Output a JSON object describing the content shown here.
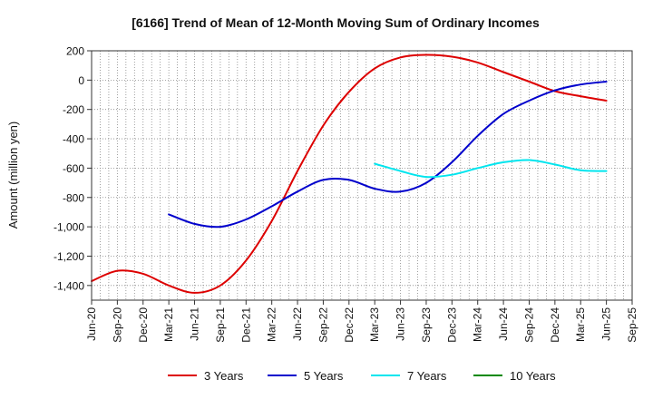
{
  "chart_data": {
    "type": "line",
    "title": "[6166]  Trend of Mean of 12-Month Moving Sum of Ordinary Incomes",
    "xlabel": "",
    "ylabel": "Amount (million yen)",
    "ylim": [
      -1500,
      200
    ],
    "yticks": [
      200,
      0,
      -200,
      -400,
      -600,
      -800,
      -1000,
      -1200,
      -1400
    ],
    "ytick_labels": [
      "200",
      "0",
      "-200",
      "-400",
      "-600",
      "-800",
      "-1,000",
      "-1,200",
      "-1,400"
    ],
    "categories": [
      "Jun-20",
      "Sep-20",
      "Dec-20",
      "Mar-21",
      "Jun-21",
      "Sep-21",
      "Dec-21",
      "Mar-22",
      "Jun-22",
      "Sep-22",
      "Dec-22",
      "Mar-23",
      "Jun-23",
      "Sep-23",
      "Dec-23",
      "Mar-24",
      "Jun-24",
      "Sep-24",
      "Dec-24",
      "Mar-25",
      "Jun-25",
      "Sep-25"
    ],
    "grid": true,
    "legend_position": "bottom",
    "series": [
      {
        "name": "3 Years",
        "color": "#dd0000",
        "values": [
          -1370,
          -1300,
          -1320,
          -1400,
          -1450,
          -1400,
          -1230,
          -960,
          -620,
          -310,
          -80,
          80,
          155,
          172,
          160,
          120,
          55,
          -10,
          -75,
          -110,
          -140,
          null
        ]
      },
      {
        "name": "5 Years",
        "color": "#0000cc",
        "values": [
          null,
          null,
          null,
          -915,
          -980,
          -1000,
          -950,
          -860,
          -760,
          -680,
          -680,
          -740,
          -760,
          -700,
          -560,
          -380,
          -230,
          -140,
          -70,
          -30,
          -10,
          null
        ]
      },
      {
        "name": "7 Years",
        "color": "#00e5ee",
        "values": [
          null,
          null,
          null,
          null,
          null,
          null,
          null,
          null,
          null,
          null,
          null,
          -570,
          -620,
          -660,
          -645,
          -600,
          -560,
          -545,
          -575,
          -615,
          -620,
          null
        ]
      },
      {
        "name": "10 Years",
        "color": "#008800",
        "values": [
          null,
          null,
          null,
          null,
          null,
          null,
          null,
          null,
          null,
          null,
          null,
          null,
          null,
          null,
          null,
          null,
          null,
          null,
          null,
          null,
          null,
          null
        ]
      }
    ]
  }
}
